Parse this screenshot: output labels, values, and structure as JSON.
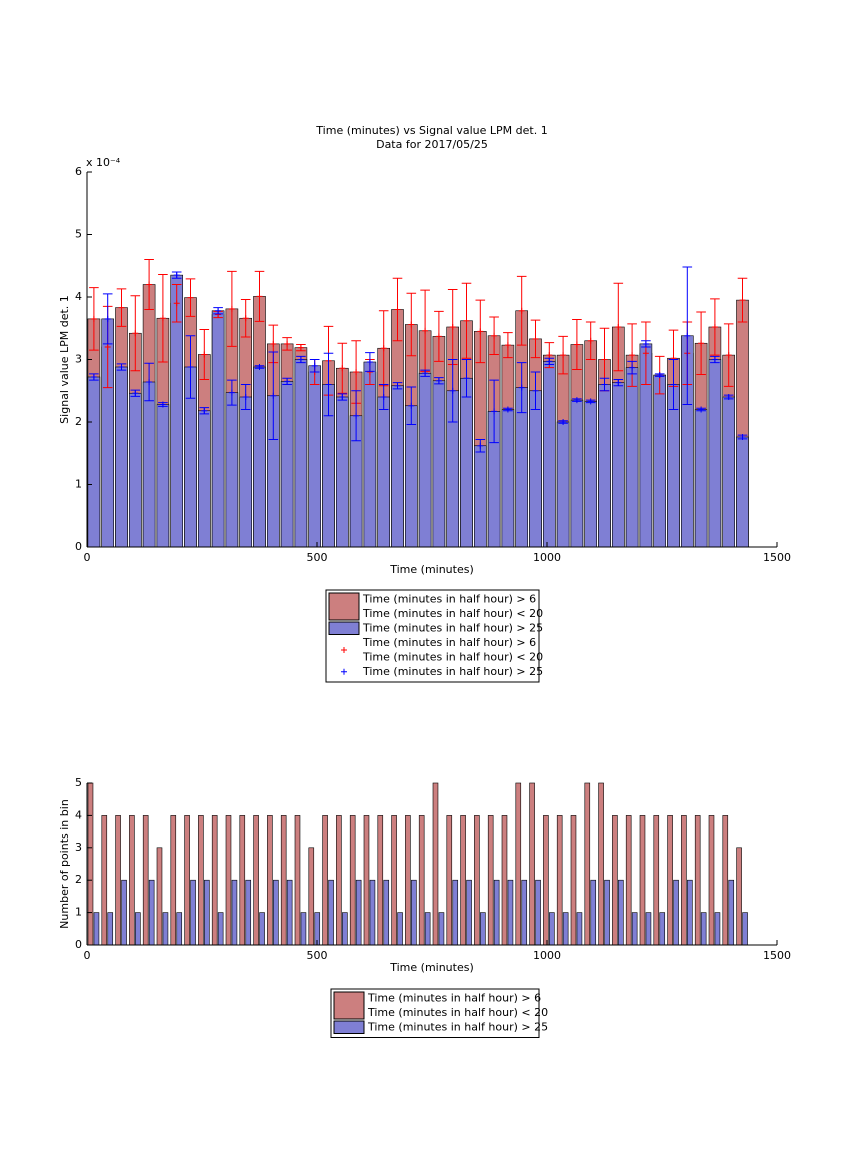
{
  "chart_data": [
    {
      "type": "bar",
      "title": "Time (minutes) vs Signal value LPM det. 1",
      "subtitle": "Data for 2017/05/25",
      "xlabel": "Time (minutes)",
      "ylabel": "Signal value LPM det. 1",
      "y_scale_label": "x 10⁻⁴",
      "x": [
        15,
        45,
        75,
        105,
        135,
        165,
        195,
        225,
        255,
        285,
        315,
        345,
        375,
        405,
        435,
        465,
        495,
        525,
        555,
        585,
        615,
        645,
        675,
        705,
        735,
        765,
        795,
        825,
        855,
        885,
        915,
        945,
        975,
        1005,
        1035,
        1065,
        1095,
        1125,
        1155,
        1185,
        1215,
        1245,
        1275,
        1305,
        1335,
        1365,
        1395,
        1425
      ],
      "series": [
        {
          "name": "Time (minutes in half hour) > 6\nTime (minutes in half hour) < 20",
          "color": "#cc7f7f",
          "marker_color": "#ff0000",
          "values": [
            3.65,
            3.2,
            3.83,
            3.42,
            4.2,
            3.66,
            3.9,
            3.99,
            3.08,
            3.72,
            3.81,
            3.66,
            4.01,
            3.25,
            3.25,
            3.19,
            2.8,
            2.98,
            2.86,
            2.8,
            2.8,
            3.18,
            3.8,
            3.56,
            3.46,
            3.37,
            3.52,
            3.62,
            3.45,
            3.38,
            3.23,
            3.78,
            3.33,
            3.07,
            3.07,
            3.24,
            3.3,
            3.0,
            3.52,
            3.07,
            3.1,
            2.75,
            3.02,
            3.1,
            3.26,
            3.52,
            3.07,
            3.95
          ],
          "errors": [
            0.5,
            0.65,
            0.3,
            0.6,
            0.4,
            0.7,
            0.3,
            0.3,
            0.4,
            0.05,
            0.6,
            0.3,
            0.4,
            0.3,
            0.1,
            0.05,
            0.2,
            0.55,
            0.4,
            0.5,
            0.2,
            0.6,
            0.5,
            0.5,
            0.65,
            0.4,
            0.6,
            0.6,
            0.5,
            0.3,
            0.2,
            0.55,
            0.3,
            0.2,
            0.3,
            0.4,
            0.3,
            0.5,
            0.7,
            0.5,
            0.5,
            0.3,
            0.45,
            0.5,
            0.5,
            0.45,
            0.5,
            0.35
          ]
        },
        {
          "name": "Time (minutes in half hour) > 25",
          "color": "#7f7fd4",
          "marker_color": "#0000ff",
          "values": [
            2.72,
            3.65,
            2.88,
            2.46,
            2.64,
            2.28,
            4.35,
            2.88,
            2.18,
            3.78,
            2.47,
            2.4,
            2.88,
            2.42,
            2.65,
            3.0,
            2.9,
            2.6,
            2.4,
            2.1,
            2.96,
            2.4,
            2.58,
            2.26,
            2.78,
            2.66,
            2.5,
            2.7,
            1.62,
            2.17,
            2.2,
            2.55,
            2.5,
            2.97,
            2.0,
            2.35,
            2.33,
            2.6,
            2.63,
            2.87,
            3.25,
            2.75,
            2.6,
            3.38,
            2.2,
            3.0,
            2.4,
            1.76
          ],
          "errors": [
            0.05,
            0.4,
            0.05,
            0.05,
            0.3,
            0.03,
            0.05,
            0.5,
            0.05,
            0.05,
            0.2,
            0.2,
            0.02,
            0.7,
            0.05,
            0.05,
            0.1,
            0.5,
            0.05,
            0.4,
            0.15,
            0.2,
            0.05,
            0.3,
            0.05,
            0.05,
            0.5,
            0.3,
            0.1,
            0.5,
            0.02,
            0.4,
            0.3,
            0.05,
            0.02,
            0.02,
            0.02,
            0.1,
            0.05,
            0.1,
            0.05,
            0.02,
            0.4,
            1.1,
            0.02,
            0.05,
            0.03,
            0.03
          ]
        }
      ],
      "xlim": [
        0,
        1500
      ],
      "xticks": [
        0,
        500,
        1000,
        1500
      ],
      "ylim": [
        0,
        6
      ],
      "yticks": [
        0,
        1,
        2,
        3,
        4,
        5,
        6
      ]
    },
    {
      "type": "histogram",
      "xlabel": "Time (minutes)",
      "ylabel": "Number of points in bin",
      "bins": [
        0,
        30,
        60,
        90,
        120,
        150,
        180,
        210,
        240,
        270,
        300,
        330,
        360,
        390,
        420,
        450,
        480,
        510,
        540,
        570,
        600,
        630,
        660,
        690,
        720,
        750,
        780,
        810,
        840,
        870,
        900,
        930,
        960,
        990,
        1020,
        1050,
        1080,
        1110,
        1140,
        1170,
        1200,
        1230,
        1260,
        1290,
        1320,
        1350,
        1380,
        1410,
        1440
      ],
      "series": [
        {
          "name": "Time (minutes in half hour) > 6\nTime (minutes in half hour) < 20",
          "color": "#cc7f7f",
          "values": [
            5,
            4,
            4,
            4,
            4,
            3,
            4,
            4,
            4,
            4,
            4,
            4,
            4,
            4,
            4,
            4,
            3,
            4,
            4,
            4,
            4,
            4,
            4,
            4,
            4,
            5,
            4,
            4,
            4,
            4,
            4,
            5,
            5,
            4,
            4,
            4,
            5,
            5,
            4,
            4,
            4,
            4,
            4,
            4,
            4,
            4,
            4,
            3
          ]
        },
        {
          "name": "Time (minutes in half hour) > 25",
          "color": "#7f7fd4",
          "values": [
            1,
            1,
            2,
            1,
            2,
            1,
            1,
            2,
            2,
            1,
            2,
            2,
            1,
            2,
            2,
            1,
            1,
            2,
            1,
            2,
            2,
            2,
            1,
            2,
            1,
            1,
            2,
            2,
            1,
            2,
            2,
            2,
            2,
            1,
            1,
            1,
            2,
            2,
            2,
            1,
            1,
            1,
            2,
            2,
            1,
            1,
            2,
            1
          ]
        }
      ],
      "xlim": [
        0,
        1500
      ],
      "xticks": [
        0,
        500,
        1000,
        1500
      ],
      "ylim": [
        0,
        5
      ],
      "yticks": [
        0,
        1,
        2,
        3,
        4,
        5
      ]
    }
  ]
}
